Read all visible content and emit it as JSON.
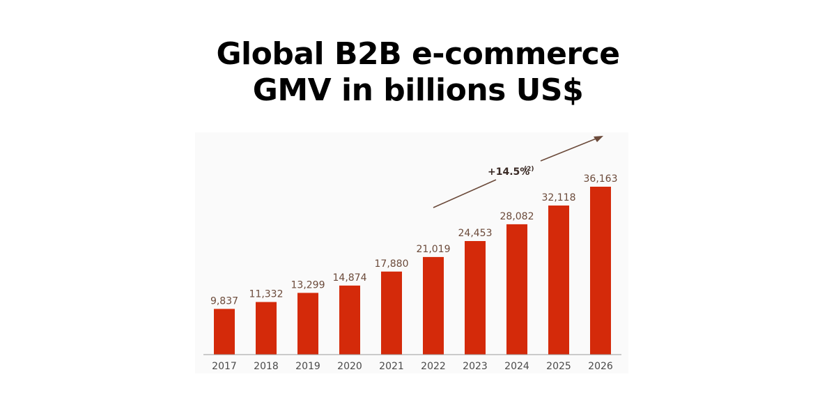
{
  "chart_data": {
    "type": "bar",
    "title_lines": [
      "Global B2B e-commerce",
      "GMV in billions US$"
    ],
    "categories": [
      "2017",
      "2018",
      "2019",
      "2020",
      "2021",
      "2022",
      "2023",
      "2024",
      "2025",
      "2026"
    ],
    "values": [
      9837,
      11332,
      13299,
      14874,
      17880,
      21019,
      24453,
      28082,
      32118,
      36163
    ],
    "value_labels": [
      "9,837",
      "11,332",
      "13,299",
      "14,874",
      "17,880",
      "21,019",
      "24,453",
      "28,082",
      "32,118",
      "36,163"
    ],
    "bar_color": "#d42a0a",
    "annotation": {
      "text": "+14.5%",
      "superscript": "(2)"
    },
    "ylim": [
      0,
      36163
    ],
    "grid": false,
    "legend": "none"
  }
}
